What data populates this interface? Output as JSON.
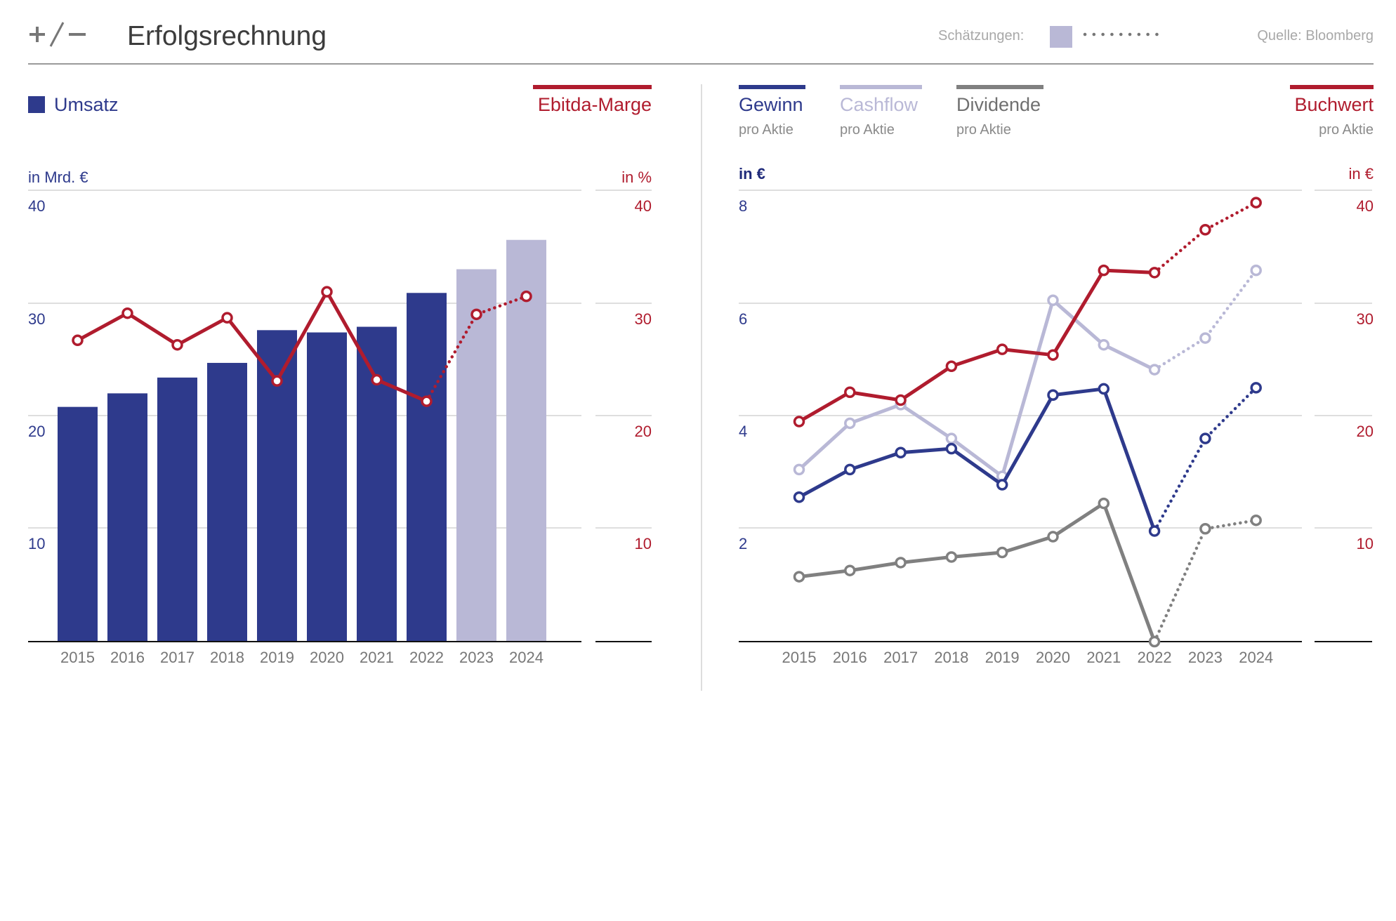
{
  "header": {
    "title": "Erfolgsrechnung",
    "estimates_label": "Schätzungen:",
    "source": "Quelle: Bloomberg"
  },
  "colors": {
    "navy": "#2e3a8c",
    "lavender": "#b9b8d6",
    "red": "#b01c2e",
    "gray": "#808080"
  },
  "icons": {
    "logo": "plus-slash-minus-logo"
  },
  "left_legend": {
    "umsatz": "Umsatz",
    "ebitda": "Ebitda-Marge"
  },
  "right_legend": {
    "gewinn": "Gewinn",
    "cashflow": "Cashflow",
    "dividende": "Dividende",
    "buchwert": "Buchwert",
    "sub": "pro Aktie"
  },
  "chart_data": [
    {
      "type": "bar",
      "categories": [
        "2015",
        "2016",
        "2017",
        "2018",
        "2019",
        "2020",
        "2021",
        "2022",
        "2023",
        "2024"
      ],
      "estimate_from": "2023",
      "left_axis": {
        "unit": "in Mrd. €",
        "ylim": [
          0,
          40
        ],
        "ticks": [
          40,
          30,
          20,
          10
        ]
      },
      "right_axis": {
        "unit": "in %",
        "ylim": [
          0,
          40
        ],
        "ticks": [
          40,
          30,
          20,
          10
        ]
      },
      "series": [
        {
          "name": "Umsatz",
          "type": "bar",
          "axis": "left",
          "values": [
            20.8,
            22.0,
            23.4,
            24.7,
            27.6,
            27.4,
            27.9,
            30.9,
            33.0,
            35.6
          ]
        },
        {
          "name": "Ebitda-Marge",
          "type": "line",
          "axis": "right",
          "values": [
            26.7,
            29.1,
            26.3,
            28.7,
            23.1,
            31.0,
            23.2,
            21.3,
            29.0,
            30.6
          ]
        }
      ],
      "grid": true
    },
    {
      "type": "line",
      "categories": [
        "2015",
        "2016",
        "2017",
        "2018",
        "2019",
        "2020",
        "2021",
        "2022",
        "2023",
        "2024"
      ],
      "estimate_from": "2023",
      "left_axis": {
        "unit": "in €",
        "ylim": [
          0,
          8
        ],
        "ticks": [
          8,
          6,
          4,
          2
        ]
      },
      "right_axis": {
        "unit": "in €",
        "ylim": [
          0,
          40
        ],
        "ticks": [
          40,
          30,
          20,
          10
        ]
      },
      "series": [
        {
          "name": "Gewinn",
          "axis": "left",
          "values": [
            2.56,
            3.05,
            3.35,
            3.42,
            2.78,
            4.37,
            4.48,
            1.96,
            3.6,
            4.5
          ]
        },
        {
          "name": "Cashflow",
          "axis": "left",
          "values": [
            3.05,
            3.87,
            4.2,
            3.6,
            2.93,
            6.05,
            5.26,
            4.82,
            5.38,
            6.58
          ]
        },
        {
          "name": "Dividende",
          "axis": "left",
          "values": [
            1.15,
            1.26,
            1.4,
            1.5,
            1.58,
            1.86,
            2.45,
            0.0,
            2.0,
            2.15
          ]
        },
        {
          "name": "Buchwert",
          "axis": "right",
          "values": [
            19.5,
            22.1,
            21.4,
            24.4,
            25.9,
            25.4,
            32.9,
            32.7,
            36.5,
            38.9
          ]
        }
      ],
      "grid": true
    }
  ]
}
